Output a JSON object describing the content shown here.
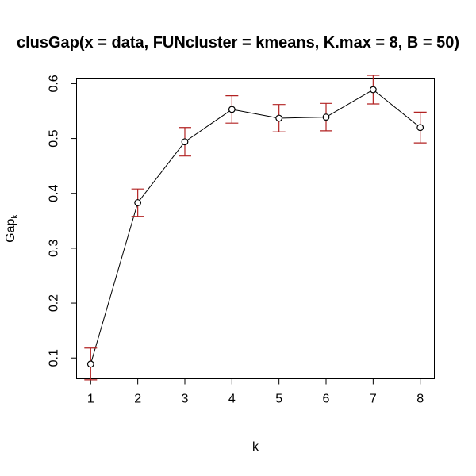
{
  "chart_data": {
    "type": "line",
    "title": "clusGap(x = data, FUNcluster = kmeans, K.max = 8, B = 50)",
    "xlabel": "k",
    "ylabel": "Gap",
    "ylabel_subscript": "k",
    "x": [
      1,
      2,
      3,
      4,
      5,
      6,
      7,
      8
    ],
    "series": [
      {
        "values": [
          0.089,
          0.383,
          0.494,
          0.553,
          0.537,
          0.539,
          0.589,
          0.52
        ],
        "error_low": [
          0.06,
          0.358,
          0.468,
          0.528,
          0.512,
          0.514,
          0.563,
          0.492
        ],
        "error_high": [
          0.118,
          0.408,
          0.52,
          0.578,
          0.562,
          0.564,
          0.615,
          0.548
        ]
      }
    ],
    "xlim": [
      0.7,
      8.3
    ],
    "ylim": [
      0.062,
      0.61
    ],
    "xticks": [
      1,
      2,
      3,
      4,
      5,
      6,
      7,
      8
    ],
    "yticks": [
      0.1,
      0.2,
      0.3,
      0.4,
      0.5,
      0.6
    ],
    "xtick_labels": [
      "1",
      "2",
      "3",
      "4",
      "5",
      "6",
      "7",
      "8"
    ],
    "ytick_labels": [
      "0.1",
      "0.2",
      "0.3",
      "0.4",
      "0.5",
      "0.6"
    ],
    "grid": false,
    "line_color": "#000000",
    "point_color": "#000000",
    "error_bar_color": "#b22222",
    "background_color": "#ffffff"
  }
}
